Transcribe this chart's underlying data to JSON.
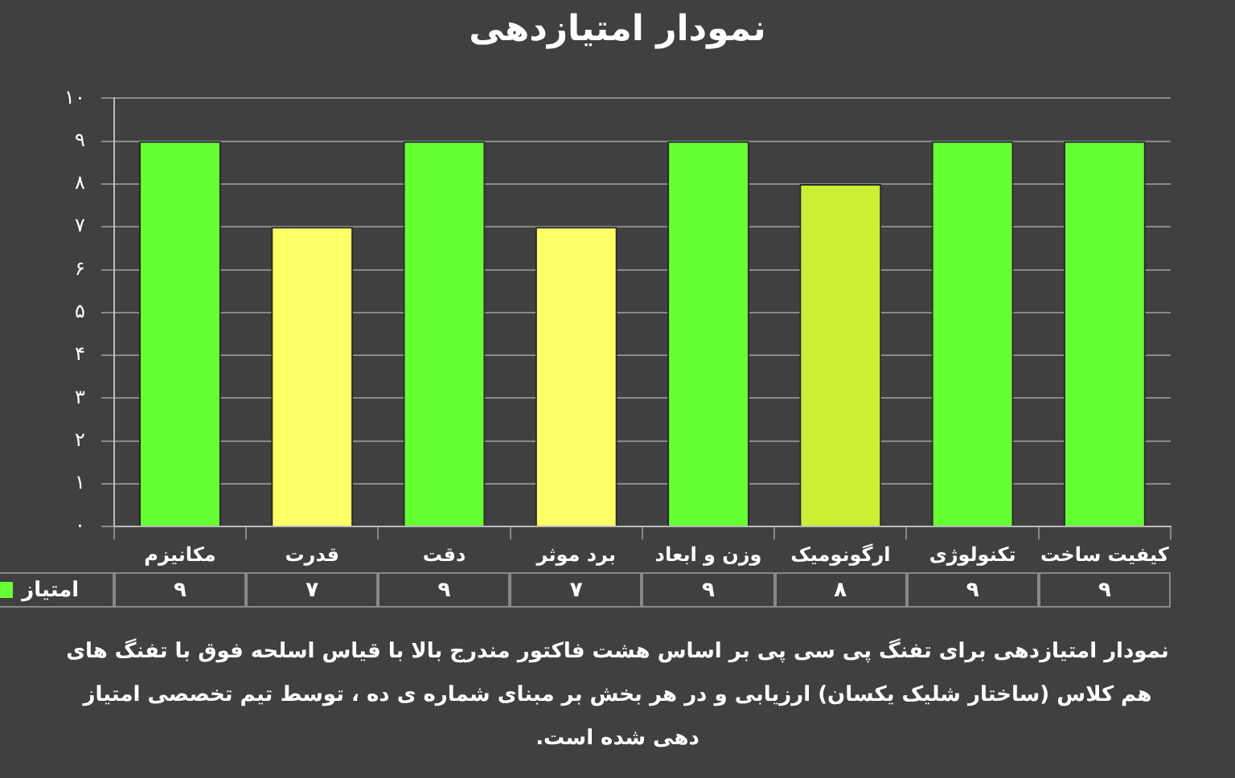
{
  "chart_data": {
    "type": "bar",
    "title": "نمودار امتیازدهی",
    "categories": [
      "مکانیزم",
      "قدرت",
      "دقت",
      "برد موثر",
      "وزن و ابعاد",
      "ارگونومیک",
      "تکنولوژی",
      "کیفیت ساخت"
    ],
    "series": [
      {
        "name": "امتیاز",
        "color": "#66ff33",
        "colors": [
          "#66ff33",
          "#ffff66",
          "#66ff33",
          "#ffff66",
          "#66ff33",
          "#ccee33",
          "#66ff33",
          "#66ff33"
        ],
        "values": [
          9,
          7,
          9,
          7,
          9,
          8,
          9,
          9
        ],
        "value_labels": [
          "۹",
          "۷",
          "۹",
          "۷",
          "۹",
          "۸",
          "۹",
          "۹"
        ]
      }
    ],
    "ylim": [
      0,
      10
    ],
    "yticks": [
      {
        "value": 0,
        "label": "۰"
      },
      {
        "value": 1,
        "label": "۱"
      },
      {
        "value": 2,
        "label": "۲"
      },
      {
        "value": 3,
        "label": "۳"
      },
      {
        "value": 4,
        "label": "۴"
      },
      {
        "value": 5,
        "label": "۵"
      },
      {
        "value": 6,
        "label": "۶"
      },
      {
        "value": 7,
        "label": "۷"
      },
      {
        "value": 8,
        "label": "۸"
      },
      {
        "value": 9,
        "label": "۹"
      },
      {
        "value": 10,
        "label": "۱۰"
      }
    ],
    "grid": "y",
    "legend": "bottom left",
    "annotations": [
      "نمودار امتیازدهی برای تفنگ پی سی پی بر اساس هشت فاکتور مندرج بالا با قیاس اسلحه فوق با تفنگ های هم کلاس (ساختار شلیک یکسان) ارزیابی و در هر بخش بر مبنای شماره ی ده ، توسط تیم تخصصی امتیاز دهی شده است."
    ]
  }
}
